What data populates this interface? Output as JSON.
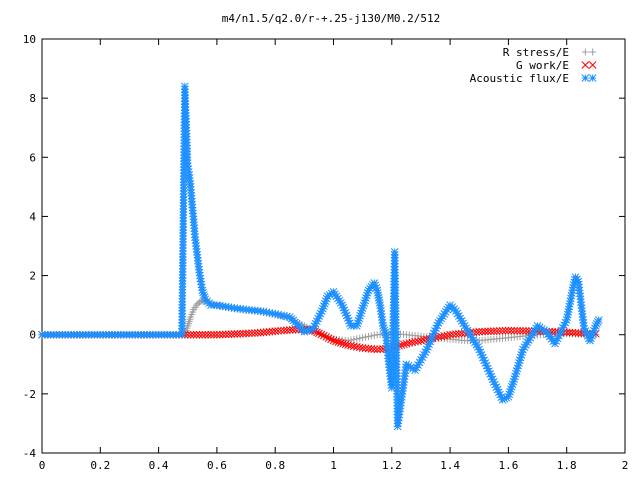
{
  "chart_data": {
    "type": "scatter",
    "title": "m4/n1.5/q2.0/r-+.25-j130/M0.2/512",
    "xlabel": "",
    "ylabel": "",
    "xlim": [
      0,
      2
    ],
    "ylim": [
      -4,
      10
    ],
    "xticks": [
      0,
      0.2,
      0.4,
      0.6,
      0.8,
      1,
      1.2,
      1.4,
      1.6,
      1.8,
      2
    ],
    "xtick_labels": [
      "0",
      "0.2",
      "0.4",
      "0.6",
      "0.8",
      "1",
      "1.2",
      "1.4",
      "1.6",
      "1.8",
      "2"
    ],
    "yticks": [
      -4,
      -2,
      0,
      2,
      4,
      6,
      8,
      10
    ],
    "ytick_labels": [
      "-4",
      "-2",
      "0",
      "2",
      "4",
      "6",
      "8",
      "10"
    ],
    "grid": false,
    "legend_position": "top-right",
    "series": [
      {
        "name": "R stress/E",
        "marker": "plus",
        "color": "#a0a0a0",
        "x": [
          0.0,
          0.1,
          0.2,
          0.3,
          0.4,
          0.49,
          0.5,
          0.51,
          0.52,
          0.53,
          0.54,
          0.55,
          0.56,
          0.58,
          0.6,
          0.62,
          0.65,
          0.68,
          0.7,
          0.75,
          0.8,
          0.85,
          0.9,
          0.95,
          1.0,
          1.05,
          1.1,
          1.15,
          1.2,
          1.25,
          1.3,
          1.35,
          1.4,
          1.45,
          1.5,
          1.55,
          1.6,
          1.65,
          1.7,
          1.75,
          1.8,
          1.85,
          1.9
        ],
        "y": [
          0.0,
          0.0,
          0.0,
          0.0,
          0.0,
          0.0,
          0.3,
          0.6,
          0.85,
          1.0,
          1.1,
          1.15,
          1.12,
          1.05,
          1.0,
          0.95,
          0.9,
          0.85,
          0.82,
          0.78,
          0.7,
          0.55,
          0.3,
          0.05,
          -0.15,
          -0.2,
          -0.1,
          0.0,
          0.05,
          0.0,
          -0.05,
          -0.1,
          -0.15,
          -0.2,
          -0.2,
          -0.15,
          -0.1,
          -0.05,
          0.0,
          0.02,
          0.03,
          0.02,
          0.0
        ]
      },
      {
        "name": "G work/E",
        "marker": "cross",
        "color": "#ff0000",
        "x": [
          0.0,
          0.1,
          0.2,
          0.3,
          0.4,
          0.5,
          0.55,
          0.6,
          0.65,
          0.7,
          0.75,
          0.8,
          0.85,
          0.9,
          0.93,
          0.95,
          1.0,
          1.05,
          1.1,
          1.15,
          1.2,
          1.25,
          1.3,
          1.35,
          1.4,
          1.45,
          1.5,
          1.55,
          1.6,
          1.65,
          1.7,
          1.75,
          1.8,
          1.85,
          1.9
        ],
        "y": [
          0.0,
          0.0,
          0.0,
          0.0,
          0.0,
          0.0,
          0.0,
          0.0,
          0.02,
          0.04,
          0.07,
          0.12,
          0.16,
          0.18,
          0.15,
          0.05,
          -0.2,
          -0.35,
          -0.45,
          -0.5,
          -0.45,
          -0.3,
          -0.2,
          -0.1,
          0.0,
          0.05,
          0.1,
          0.12,
          0.14,
          0.13,
          0.12,
          0.1,
          0.08,
          0.05,
          0.03
        ]
      },
      {
        "name": "Acoustic flux/E",
        "marker": "star",
        "color": "#1e90ff",
        "x": [
          0.0,
          0.1,
          0.2,
          0.3,
          0.4,
          0.48,
          0.49,
          0.5,
          0.505,
          0.51,
          0.515,
          0.52,
          0.525,
          0.53,
          0.535,
          0.54,
          0.545,
          0.55,
          0.56,
          0.58,
          0.6,
          0.63,
          0.66,
          0.7,
          0.75,
          0.8,
          0.85,
          0.88,
          0.9,
          0.93,
          0.96,
          0.98,
          1.0,
          1.03,
          1.06,
          1.08,
          1.1,
          1.12,
          1.14,
          1.15,
          1.16,
          1.17,
          1.18,
          1.19,
          1.2,
          1.21,
          1.22,
          1.25,
          1.28,
          1.32,
          1.36,
          1.4,
          1.42,
          1.45,
          1.5,
          1.55,
          1.58,
          1.6,
          1.62,
          1.65,
          1.7,
          1.73,
          1.76,
          1.8,
          1.82,
          1.83,
          1.84,
          1.85,
          1.86,
          1.88,
          1.9,
          1.91
        ],
        "y": [
          0.0,
          0.0,
          0.0,
          0.0,
          0.0,
          0.0,
          8.4,
          5.7,
          5.4,
          5.0,
          4.4,
          3.9,
          3.3,
          2.9,
          2.5,
          2.1,
          1.8,
          1.5,
          1.2,
          1.0,
          1.0,
          0.95,
          0.9,
          0.85,
          0.8,
          0.7,
          0.6,
          0.3,
          0.1,
          0.2,
          0.8,
          1.3,
          1.45,
          1.0,
          0.3,
          0.3,
          0.9,
          1.5,
          1.75,
          1.5,
          1.0,
          0.3,
          0.0,
          -1.0,
          -1.8,
          2.8,
          -3.1,
          -1.0,
          -1.2,
          -0.5,
          0.4,
          1.0,
          0.8,
          0.3,
          -0.5,
          -1.6,
          -2.2,
          -2.1,
          -1.5,
          -0.5,
          0.3,
          0.1,
          -0.3,
          0.5,
          1.5,
          1.95,
          1.8,
          1.0,
          0.2,
          -0.2,
          0.3,
          0.5
        ]
      }
    ]
  }
}
